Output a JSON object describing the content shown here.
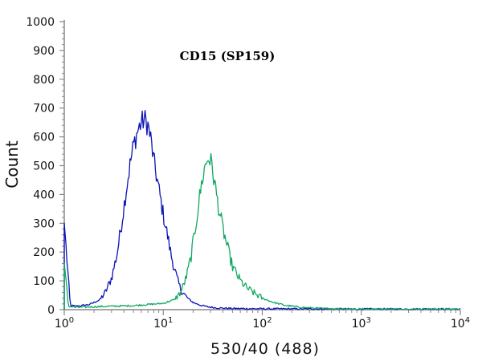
{
  "chart_data": {
    "type": "line",
    "title": "CD15 (SP159)",
    "xlabel": "530/40 (488)",
    "ylabel": "Count",
    "x_scale": "log",
    "xlim": [
      1,
      10000
    ],
    "ylim": [
      0,
      1000
    ],
    "x_ticks": [
      {
        "base": "10",
        "exp": "0"
      },
      {
        "base": "10",
        "exp": "1"
      },
      {
        "base": "10",
        "exp": "2"
      },
      {
        "base": "10",
        "exp": "3"
      },
      {
        "base": "10",
        "exp": "4"
      }
    ],
    "y_ticks": [
      "0",
      "100",
      "200",
      "300",
      "400",
      "500",
      "600",
      "700",
      "800",
      "900",
      "1000"
    ],
    "grid": false,
    "colors": {
      "blue": "#0a14b4",
      "green": "#12a862",
      "axis": "#888888"
    },
    "series": [
      {
        "color": "#0a14b4",
        "x": [
          1,
          1.15,
          1.3,
          1.5,
          1.8,
          2,
          2.3,
          2.6,
          3,
          3.4,
          3.8,
          4.2,
          4.6,
          5,
          5.5,
          6,
          6.5,
          7,
          7.5,
          8,
          9,
          10,
          11,
          12,
          13,
          14,
          15,
          17,
          20,
          24,
          28,
          35,
          50,
          100,
          1000,
          10000
        ],
        "y": [
          300,
          15,
          12,
          14,
          18,
          25,
          35,
          60,
          110,
          190,
          300,
          410,
          500,
          570,
          620,
          650,
          660,
          640,
          590,
          520,
          420,
          330,
          260,
          190,
          140,
          100,
          70,
          45,
          25,
          15,
          10,
          6,
          4,
          3,
          2,
          2
        ]
      },
      {
        "color": "#12a862",
        "x": [
          1,
          1.1,
          1.3,
          2,
          3,
          5,
          7,
          10,
          13,
          15,
          17,
          19,
          21,
          23,
          25,
          27,
          29,
          31,
          33,
          36,
          40,
          45,
          50,
          60,
          70,
          85,
          100,
          130,
          170,
          250,
          400,
          1000,
          10000
        ],
        "y": [
          160,
          12,
          8,
          10,
          12,
          14,
          18,
          22,
          35,
          60,
          110,
          180,
          280,
          380,
          460,
          510,
          530,
          500,
          440,
          360,
          280,
          210,
          150,
          100,
          75,
          55,
          40,
          25,
          15,
          8,
          4,
          2,
          2
        ]
      }
    ]
  }
}
